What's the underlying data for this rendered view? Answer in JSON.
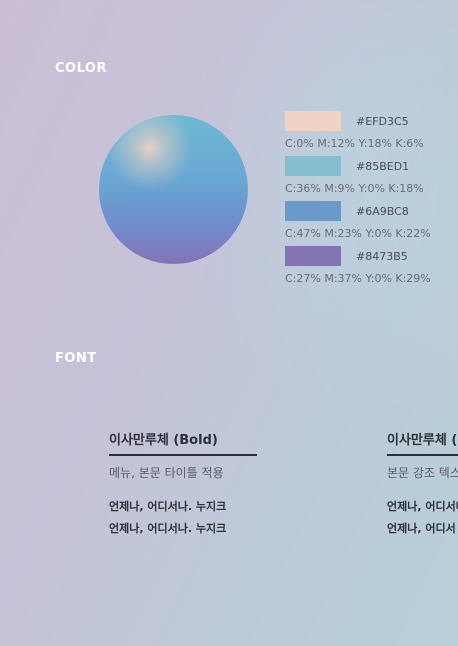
{
  "sections": {
    "color_title": "COLOR",
    "font_title": "FONT"
  },
  "colors": [
    {
      "hex_label": "#EFD3C5",
      "cmyk": "C:0% M:12% Y:18% K:6%",
      "value": "#EFD3C5"
    },
    {
      "hex_label": "#85BED1",
      "cmyk": "C:36% M:9% Y:0% K:18%",
      "value": "#85BED1"
    },
    {
      "hex_label": "#6A9BC8",
      "cmyk": "C:47% M:23% Y:0% K:22%",
      "value": "#6A9BC8"
    },
    {
      "hex_label": "#8473B5",
      "cmyk": "C:27% M:37% Y:0% K:29%",
      "value": "#8473B5"
    }
  ],
  "fonts": [
    {
      "name": "이사만루체 (Bold)",
      "usage": "메뉴, 본문 타이틀 적용",
      "sample_1": "언제나, 어디서나. 누지크",
      "sample_2": "언제나, 어디서나. 누지크"
    },
    {
      "name": "이사만루체 (M",
      "usage": "본문 강조 텍스",
      "sample_1": "언제나, 어디서나",
      "sample_2": "언제나, 어디서"
    }
  ]
}
